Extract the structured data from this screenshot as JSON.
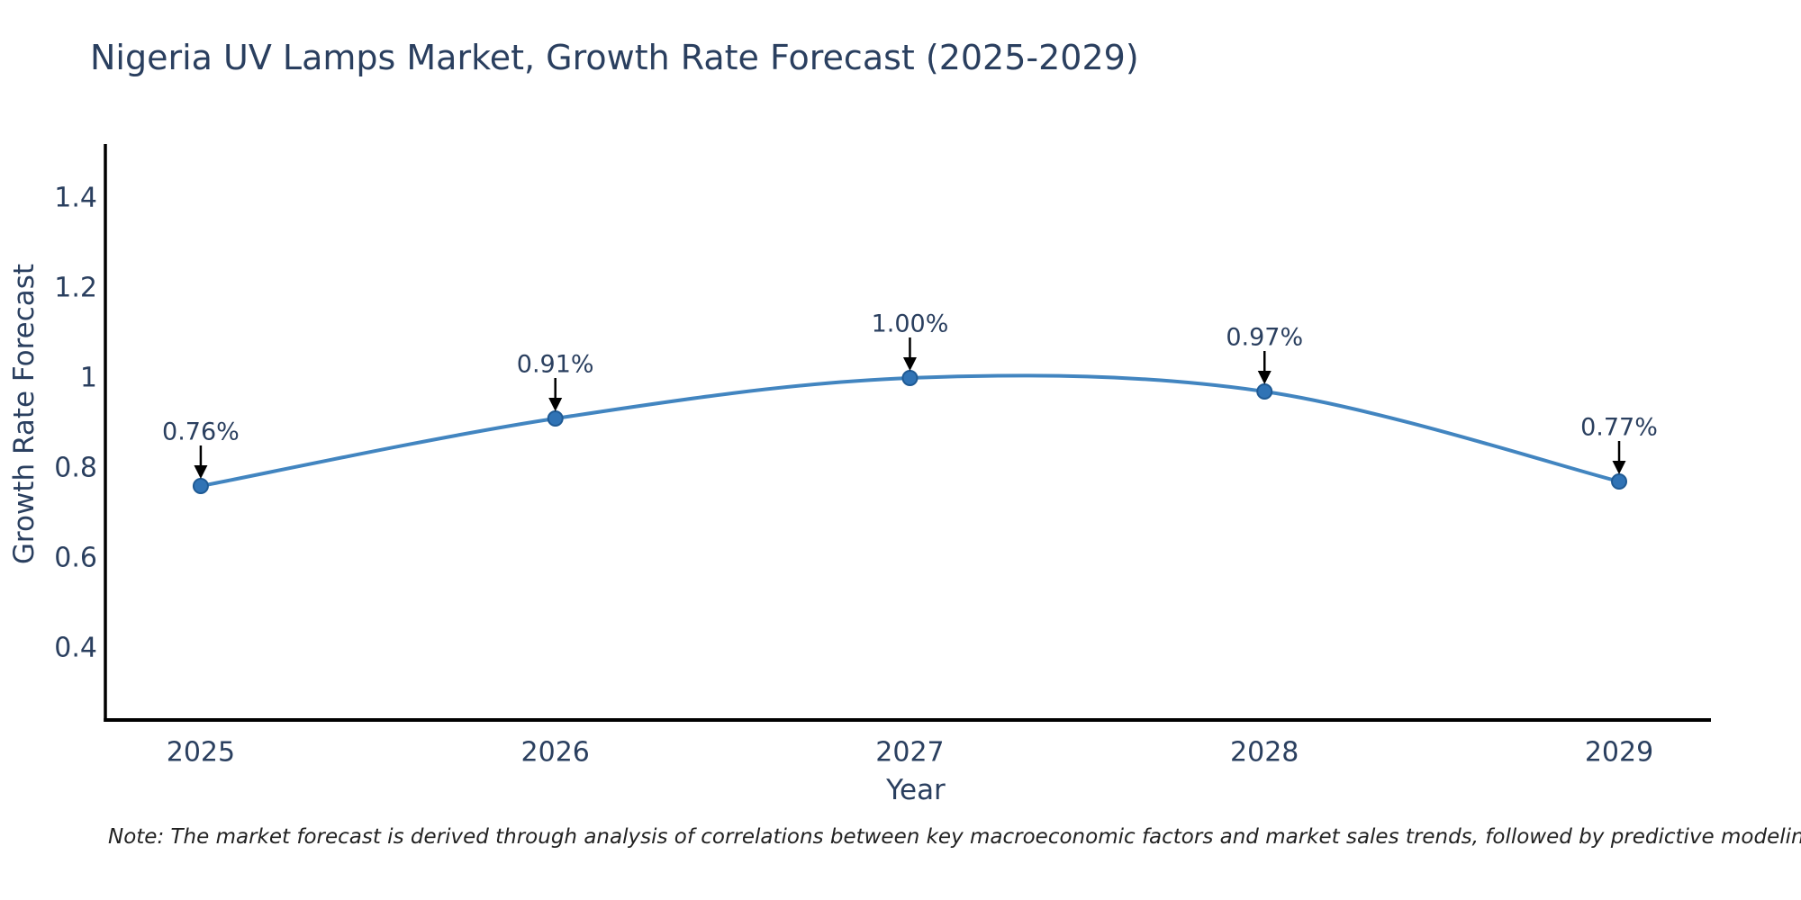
{
  "title": "Nigeria UV Lamps Market, Growth Rate Forecast (2025-2029)",
  "note": "Note: The market forecast is derived through analysis of correlations between key macroeconomic factors and market sales trends, followed by predictive modeling to project future sales",
  "chart_data": {
    "type": "line",
    "title": "Nigeria UV Lamps Market, Growth Rate Forecast (2025-2029)",
    "xlabel": "Year",
    "ylabel": "Growth Rate Forecast",
    "x": [
      2025,
      2026,
      2027,
      2028,
      2029
    ],
    "series": [
      {
        "name": "Growth Rate Forecast",
        "values": [
          0.76,
          0.91,
          1.0,
          0.97,
          0.77
        ]
      }
    ],
    "point_labels": [
      "0.76%",
      "0.91%",
      "1.00%",
      "0.97%",
      "0.77%"
    ],
    "xtick_labels": [
      "2025",
      "2026",
      "2027",
      "2028",
      "2029"
    ],
    "yticks": [
      1.4,
      1.2,
      1,
      0.8,
      0.6,
      0.4
    ],
    "ytick_labels": [
      "1.4",
      "1.2",
      "1",
      "0.8",
      "0.6",
      "0.4"
    ],
    "xlim": [
      2024.731,
      2029.259
    ],
    "ylim": [
      0.24,
      1.52
    ],
    "grid": false,
    "legend": "none",
    "line_shape": "spline",
    "colors": {
      "line": "#4285c0",
      "marker": "#3073b5",
      "marker_edge": "#1f5a94",
      "arrow": "#000000",
      "axis": "#000000",
      "text": "#2a3f5f"
    }
  }
}
